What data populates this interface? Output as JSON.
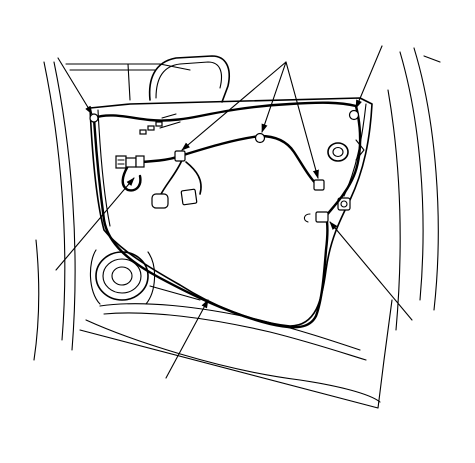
{
  "diagram": {
    "subject": "door-wire-harness",
    "labels": [],
    "colors": {
      "line": "#000000",
      "background": "#ffffff"
    },
    "callouts": [
      {
        "name": "callout-top-left",
        "target": "harness-clip"
      },
      {
        "name": "callout-top-center",
        "target": "harness-connectors"
      },
      {
        "name": "callout-top-right",
        "target": "harness-grommet"
      },
      {
        "name": "callout-left",
        "target": "harness-connector-block"
      },
      {
        "name": "callout-right",
        "target": "harness-lower-connector"
      },
      {
        "name": "callout-bottom",
        "target": "harness-lower-run"
      }
    ]
  }
}
